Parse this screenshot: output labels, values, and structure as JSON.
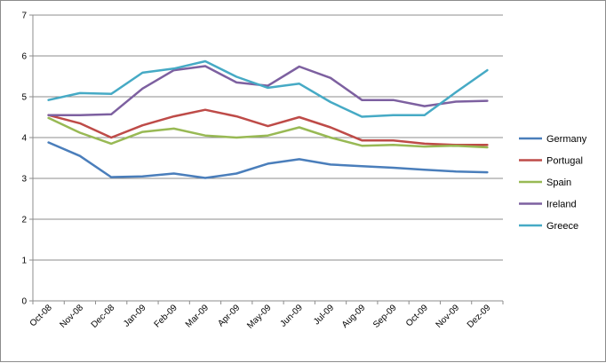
{
  "chart_data": {
    "type": "line",
    "title": "",
    "xlabel": "",
    "ylabel": "",
    "ylim": [
      0,
      7
    ],
    "yticks": [
      "0",
      "1",
      "2",
      "3",
      "4",
      "5",
      "6",
      "7"
    ],
    "grid": "horizontal",
    "legend_position": "right",
    "categories": [
      "Oct-08",
      "Nov-08",
      "Dec-08",
      "Jan-09",
      "Feb-09",
      "Mar-09",
      "Apr-09",
      "May-09",
      "Jun-09",
      "Jul-09",
      "Aug-09",
      "Sep-09",
      "Oct-09",
      "Nov-09",
      "Dez-09"
    ],
    "series": [
      {
        "name": "Germany",
        "color": "#4a7ebb",
        "values": [
          3.88,
          3.55,
          3.03,
          3.05,
          3.12,
          3.01,
          3.12,
          3.36,
          3.47,
          3.34,
          3.3,
          3.26,
          3.21,
          3.17,
          3.15
        ]
      },
      {
        "name": "Portugal",
        "color": "#be4b48",
        "values": [
          4.55,
          4.35,
          4.0,
          4.3,
          4.52,
          4.68,
          4.52,
          4.28,
          4.5,
          4.25,
          3.93,
          3.93,
          3.85,
          3.82,
          3.82
        ]
      },
      {
        "name": "Spain",
        "color": "#98b954",
        "values": [
          4.48,
          4.12,
          3.85,
          4.14,
          4.22,
          4.05,
          4.0,
          4.05,
          4.25,
          4.0,
          3.8,
          3.82,
          3.78,
          3.8,
          3.76
        ]
      },
      {
        "name": "Ireland",
        "color": "#7d60a0",
        "values": [
          4.55,
          4.55,
          4.57,
          5.2,
          5.65,
          5.75,
          5.35,
          5.27,
          5.74,
          5.46,
          4.92,
          4.92,
          4.77,
          4.88,
          4.9
        ]
      },
      {
        "name": "Greece",
        "color": "#46aac5",
        "values": [
          4.92,
          5.09,
          5.07,
          5.59,
          5.69,
          5.87,
          5.49,
          5.22,
          5.32,
          4.87,
          4.51,
          4.55,
          4.55,
          5.11,
          5.65
        ]
      }
    ]
  }
}
